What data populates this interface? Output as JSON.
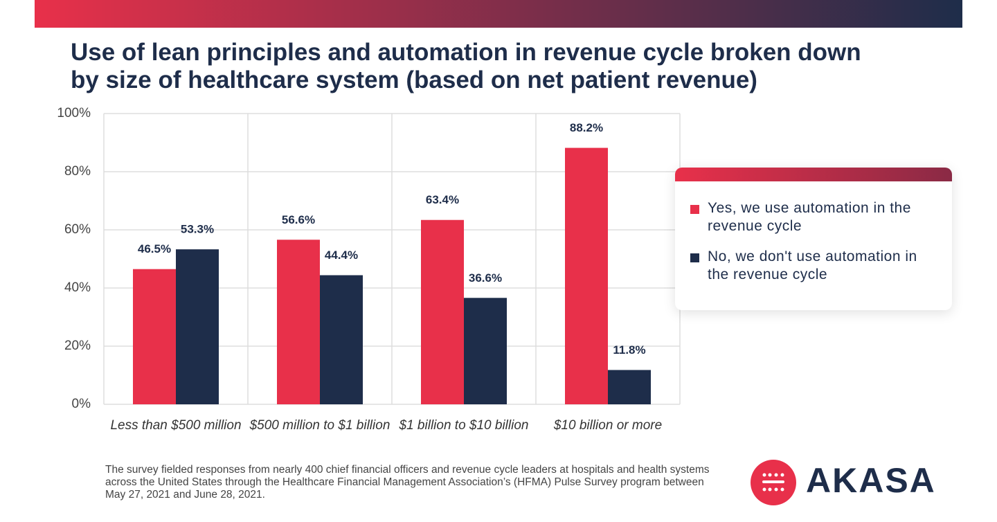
{
  "chart_data": {
    "type": "bar",
    "title": "Use of lean principles and automation in revenue cycle broken down by size of healthcare system (based on net patient revenue)",
    "categories": [
      "Less than $500 million",
      "$500 million to $1 billion",
      "$1 billion to $10 billion",
      "$10 billion or more"
    ],
    "series": [
      {
        "name": "Yes, we use automation in the revenue cycle",
        "color": "#e8304a",
        "values": [
          46.5,
          56.6,
          63.4,
          88.2
        ],
        "value_labels": [
          "46.5%",
          "56.6%",
          "63.4%",
          "88.2%"
        ]
      },
      {
        "name": "No, we don't use automation in the revenue cycle",
        "color": "#1e2d4a",
        "values": [
          53.3,
          44.4,
          36.6,
          11.8
        ],
        "value_labels": [
          "53.3%",
          "44.4%",
          "36.6%",
          "11.8%"
        ]
      }
    ],
    "ylim": [
      0,
      100
    ],
    "yticks": [
      {
        "value": 0,
        "label": "0%"
      },
      {
        "value": 20,
        "label": "20%"
      },
      {
        "value": 40,
        "label": "40%"
      },
      {
        "value": 60,
        "label": "60%"
      },
      {
        "value": 80,
        "label": "80%"
      },
      {
        "value": 100,
        "label": "100%"
      }
    ],
    "grid": true,
    "legend": "right"
  },
  "footnote": "The survey fielded responses from nearly 400 chief financial officers and revenue cycle leaders at hospitals and health systems across the United States through the Healthcare Financial Management Association’s (HFMA) Pulse Survey program between May 27, 2021 and June 28, 2021.",
  "logo": "AKASA"
}
